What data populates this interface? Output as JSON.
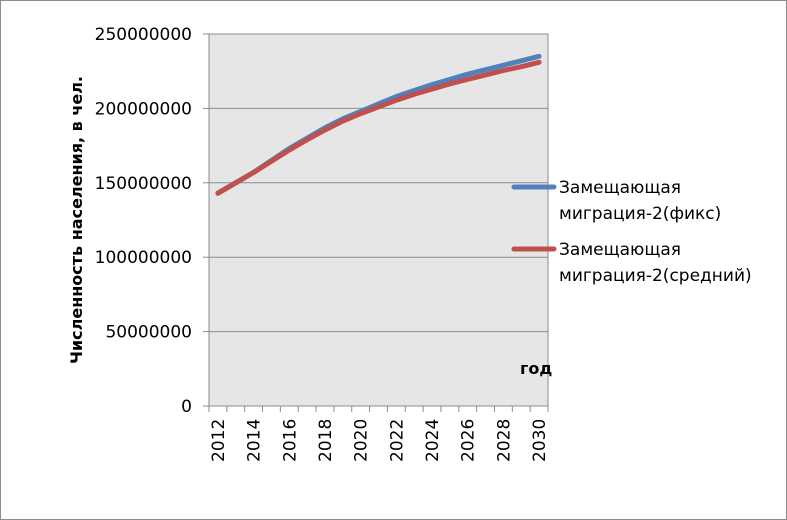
{
  "chart_data": {
    "type": "line",
    "title": "",
    "xlabel": "год",
    "ylabel": "Численность населения, в чел.",
    "ylim": [
      0,
      250000000
    ],
    "yticks": [
      "0",
      "50000000",
      "100000000",
      "150000000",
      "200000000",
      "250000000"
    ],
    "xticks": [
      "2012",
      "2014",
      "2016",
      "2018",
      "2020",
      "2022",
      "2024",
      "2026",
      "2028",
      "2030"
    ],
    "x": [
      2012,
      2013,
      2014,
      2015,
      2016,
      2017,
      2018,
      2019,
      2020,
      2021,
      2022,
      2023,
      2024,
      2025,
      2026,
      2027,
      2028,
      2029,
      2030
    ],
    "grid": true,
    "legend_position": "right",
    "series": [
      {
        "name_lines": [
          "Замещающая",
          "миграция-2(фикс)"
        ],
        "color": "#4f81bd",
        "values": [
          143000000,
          150000000,
          157000000,
          165000000,
          173000000,
          180000000,
          187000000,
          193000000,
          198000000,
          203000000,
          208000000,
          212000000,
          216000000,
          219500000,
          223000000,
          226000000,
          229000000,
          232000000,
          235000000
        ]
      },
      {
        "name_lines": [
          "Замещающая",
          "миграция-2(средний)"
        ],
        "color": "#c0504d",
        "values": [
          143000000,
          150000000,
          157000000,
          164500000,
          172000000,
          179000000,
          185500000,
          191500000,
          196500000,
          201000000,
          205500000,
          209500000,
          213000000,
          216500000,
          219500000,
          222500000,
          225500000,
          228000000,
          231000000
        ]
      }
    ]
  }
}
